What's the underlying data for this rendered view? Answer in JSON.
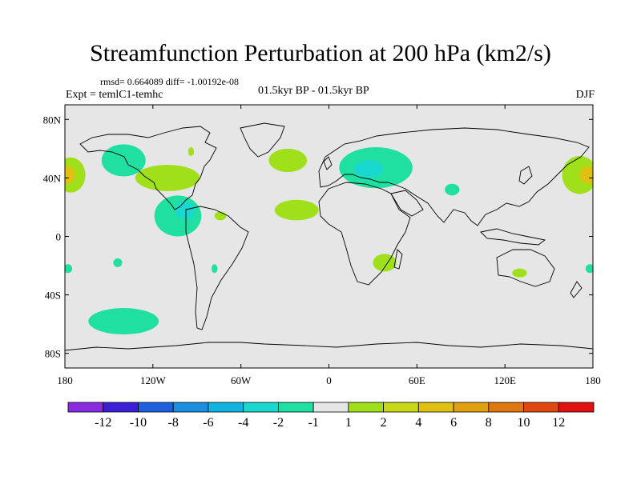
{
  "title": "Streamfunction Perturbation at 200 hPa (km2/s)",
  "stats": "rmsd= 0.664089 diff= -1.00192e-08",
  "expt": "Expt = temlC1-temhc",
  "period": "01.5kyr BP - 01.5kyr BP",
  "season": "DJF",
  "map": {
    "lon_range": [
      -180,
      180
    ],
    "lat_range": [
      -90,
      90
    ],
    "lon_ticks": [
      {
        "value": -180,
        "label": "180"
      },
      {
        "value": -120,
        "label": "120W"
      },
      {
        "value": -60,
        "label": "60W"
      },
      {
        "value": 0,
        "label": "0"
      },
      {
        "value": 60,
        "label": "60E"
      },
      {
        "value": 120,
        "label": "120E"
      },
      {
        "value": 180,
        "label": "180"
      }
    ],
    "lat_ticks": [
      {
        "value": 80,
        "label": "80N"
      },
      {
        "value": 40,
        "label": "40N"
      },
      {
        "value": 0,
        "label": "0"
      },
      {
        "value": -40,
        "label": "40S"
      },
      {
        "value": -80,
        "label": "80S"
      }
    ],
    "background_color": "#e6e6e6",
    "coastline_color": "#000000"
  },
  "colorbar": {
    "colors": [
      "#8a2be2",
      "#3a1fd6",
      "#1e5fe0",
      "#1a8ee0",
      "#10b4e0",
      "#18d8d0",
      "#1fe0a0",
      "#e6e6e6",
      "#a0e01a",
      "#c8d814",
      "#e0c010",
      "#e0a010",
      "#e07810",
      "#e04810",
      "#e01010"
    ],
    "labels": [
      "-12",
      "-10",
      "-8",
      "-6",
      "-4",
      "-2",
      "-1",
      "1",
      "2",
      "4",
      "6",
      "8",
      "10",
      "12"
    ]
  },
  "anomalies": [
    {
      "name": "nw-pacific-positive",
      "level": "2",
      "color": "#a0e01a",
      "lon": -176,
      "lat": 42,
      "rlon": 10,
      "rlat": 12
    },
    {
      "name": "nw-pacific-core",
      "level": "4",
      "color": "#e0c010",
      "lon": -178,
      "lat": 42,
      "rlon": 5,
      "rlat": 6
    },
    {
      "name": "ne-pacific-negative",
      "level": "-1",
      "color": "#1fe0a0",
      "lon": -140,
      "lat": 52,
      "rlon": 15,
      "rlat": 11
    },
    {
      "name": "north-america-positive",
      "level": "2",
      "color": "#a0e01a",
      "lon": -110,
      "lat": 40,
      "rlon": 22,
      "rlat": 9
    },
    {
      "name": "mexico-negative",
      "level": "-1",
      "color": "#1fe0a0",
      "lon": -103,
      "lat": 14,
      "rlon": 16,
      "rlat": 14
    },
    {
      "name": "mexico-core",
      "level": "-2",
      "color": "#18d8d0",
      "lon": -98,
      "lat": 18,
      "rlon": 7,
      "rlat": 6
    },
    {
      "name": "north-atlantic-positive",
      "level": "2",
      "color": "#a0e01a",
      "lon": -28,
      "lat": 52,
      "rlon": 13,
      "rlat": 8
    },
    {
      "name": "west-africa-positive",
      "level": "2",
      "color": "#a0e01a",
      "lon": -22,
      "lat": 18,
      "rlon": 15,
      "rlat": 7
    },
    {
      "name": "europe-negative",
      "level": "-1",
      "color": "#1fe0a0",
      "lon": 32,
      "lat": 47,
      "rlon": 25,
      "rlat": 14
    },
    {
      "name": "europe-core",
      "level": "-2",
      "color": "#18d8d0",
      "lon": 27,
      "lat": 46,
      "rlon": 10,
      "rlat": 6
    },
    {
      "name": "arabia-negative",
      "level": "-1",
      "color": "#1fe0a0",
      "lon": 84,
      "lat": 32,
      "rlon": 5,
      "rlat": 4
    },
    {
      "name": "southern-africa-positive",
      "level": "2",
      "color": "#a0e01a",
      "lon": 38,
      "lat": -18,
      "rlon": 8,
      "rlat": 6
    },
    {
      "name": "australia-positive",
      "level": "2",
      "color": "#a0e01a",
      "lon": 130,
      "lat": -25,
      "rlon": 5,
      "rlat": 3
    },
    {
      "name": "nw-pacific-east-positive",
      "level": "2",
      "color": "#a0e01a",
      "lon": 171,
      "lat": 42,
      "rlon": 12,
      "rlat": 13
    },
    {
      "name": "nw-pacific-east-core",
      "level": "4",
      "color": "#e0c010",
      "lon": 177,
      "lat": 42,
      "rlon": 6,
      "rlat": 6
    },
    {
      "name": "south-pacific-negative",
      "level": "-1",
      "color": "#1fe0a0",
      "lon": -140,
      "lat": -58,
      "rlon": 24,
      "rlat": 9
    },
    {
      "name": "south-pacific-small",
      "level": "-1",
      "color": "#1fe0a0",
      "lon": -144,
      "lat": -18,
      "rlon": 3,
      "rlat": 3
    },
    {
      "name": "south-pacific-west-edge",
      "level": "-1",
      "color": "#1fe0a0",
      "lon": -178,
      "lat": -22,
      "rlon": 3,
      "rlat": 3
    },
    {
      "name": "south-pacific-east-edge",
      "level": "-1",
      "color": "#1fe0a0",
      "lon": 178,
      "lat": -22,
      "rlon": 3,
      "rlat": 3
    },
    {
      "name": "caribbean-positive",
      "level": "2",
      "color": "#a0e01a",
      "lon": -74,
      "lat": 14,
      "rlon": 4,
      "rlat": 3
    },
    {
      "name": "chile-negative",
      "level": "-1",
      "color": "#1fe0a0",
      "lon": -78,
      "lat": -22,
      "rlon": 2,
      "rlat": 3
    },
    {
      "name": "alaska-positive",
      "level": "2",
      "color": "#a0e01a",
      "lon": -94,
      "lat": 58,
      "rlon": 2,
      "rlat": 3
    }
  ]
}
